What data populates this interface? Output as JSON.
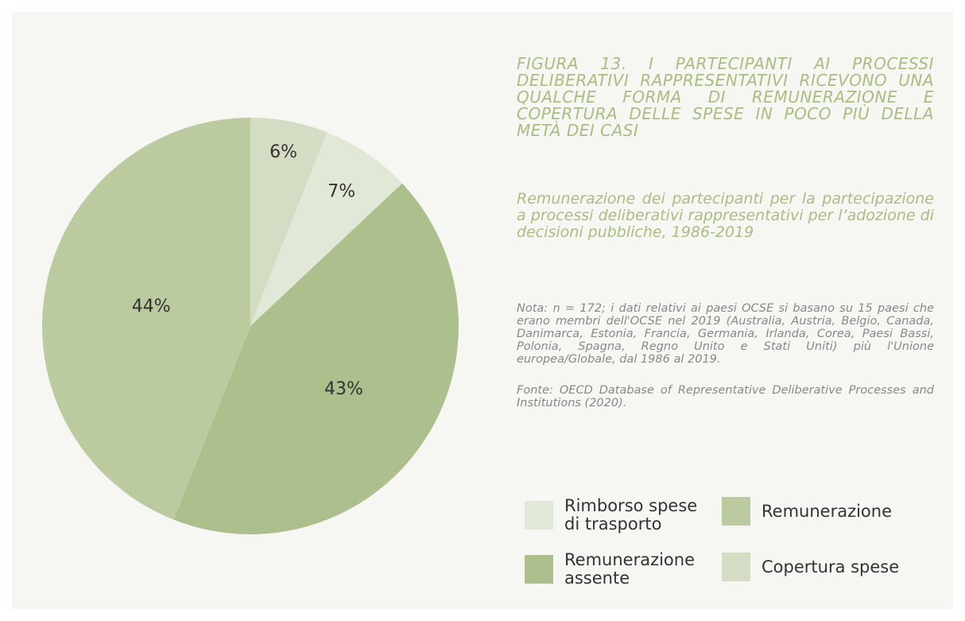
{
  "chart_data": {
    "type": "pie",
    "title": "FIGURA 13. I PARTECIPANTI AI PROCESSI DELIBERATIVI RAPPRESENTATIVI RICEVONO UNA QUALCHE FORMA DI REMUNERAZIONE E COPERTURA DELLE SPESE IN POCO PIÙ DELLA METÀ DEI CASI",
    "subtitle": "Remunerazione dei partecipanti per la partecipazione a processi deliberativi rappresentativi per l’adozione di decisioni pubbliche, 1986-2019",
    "note": "Nota: n = 172; i dati relativi ai paesi OCSE si basano su 15 paesi che erano membri dell'OCSE nel 2019 (Australia, Austria, Belgio, Canada, Danimarca, Estonia, Francia, Germania, Irlanda, Corea, Paesi Bassi, Polonia, Spagna, Regno Unito e Stati Uniti) più l'Unione europea/Globale, dal 1986 al 2019.",
    "source": "Fonte: OECD Database of Representative Deliberative Processes and Institutions (2020).",
    "categories": [
      "Copertura spese",
      "Rimborso spese di trasporto",
      "Remunerazione assente",
      "Remunerazione"
    ],
    "values": [
      6,
      7,
      43,
      44
    ],
    "value_labels": [
      "6%",
      "7%",
      "43%",
      "44%"
    ],
    "colors": [
      "#d4dcc3",
      "#e1e8d7",
      "#aebf8e",
      "#bccaa0"
    ]
  }
}
